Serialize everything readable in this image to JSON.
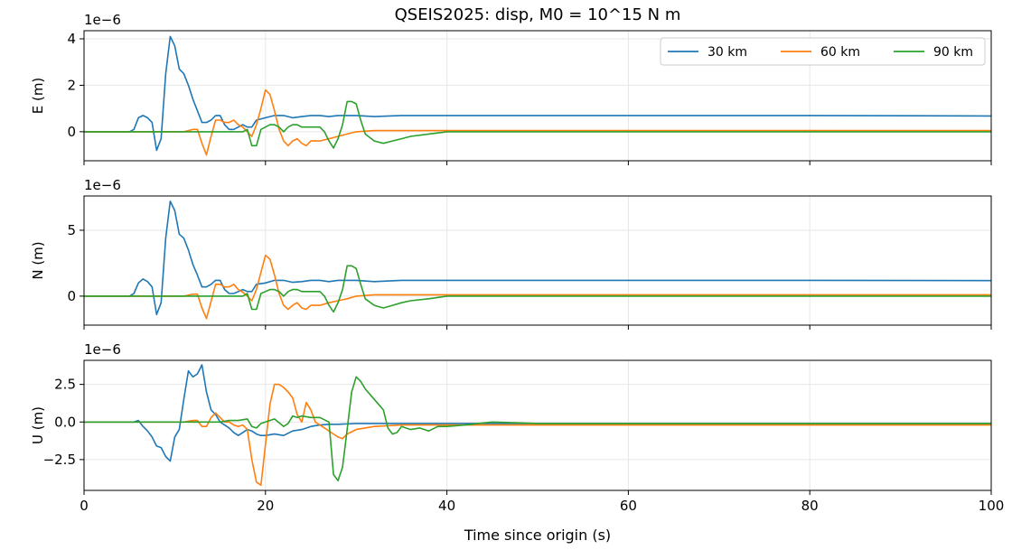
{
  "figure": {
    "title": "QSEIS2025: disp, M0 = 10^15 N m",
    "xlabel": "Time since origin (s)"
  },
  "colors": {
    "30 km": "#1f77b4",
    "60 km": "#ff7f0e",
    "90 km": "#2ca02c"
  },
  "legend": {
    "location": "top-right (first panel)",
    "entries": [
      "30 km",
      "60 km",
      "90 km"
    ]
  },
  "chart_data": [
    {
      "type": "line",
      "ylabel": "E (m)",
      "scale_label": "1e−6",
      "xlim": [
        0,
        100
      ],
      "ylim": [
        -1.25,
        4.35
      ],
      "xticks": [
        0,
        20,
        40,
        60,
        80,
        100
      ],
      "yticks": [
        0,
        2,
        4
      ],
      "ytick_labels": [
        "0",
        "2",
        "4"
      ],
      "grid": true,
      "series": [
        {
          "name": "30 km",
          "x": [
            0,
            5,
            5.5,
            6,
            6.5,
            7,
            7.5,
            8,
            8.5,
            9,
            9.5,
            10,
            10.5,
            11,
            11.5,
            12,
            12.5,
            13,
            13.5,
            14,
            14.5,
            15,
            15.5,
            16,
            16.5,
            17,
            17.5,
            18,
            18.5,
            19,
            20,
            21,
            22,
            23,
            24,
            25,
            26,
            27,
            28,
            29,
            30,
            32,
            35,
            40,
            50,
            60,
            80,
            100
          ],
          "y": [
            0,
            0,
            0.1,
            0.6,
            0.7,
            0.6,
            0.4,
            -0.8,
            -0.3,
            2.5,
            4.1,
            3.7,
            2.7,
            2.5,
            2.0,
            1.4,
            0.9,
            0.4,
            0.4,
            0.5,
            0.7,
            0.7,
            0.3,
            0.1,
            0.1,
            0.2,
            0.3,
            0.2,
            0.2,
            0.5,
            0.6,
            0.7,
            0.7,
            0.6,
            0.65,
            0.7,
            0.7,
            0.65,
            0.7,
            0.7,
            0.7,
            0.65,
            0.7,
            0.7,
            0.7,
            0.7,
            0.7,
            0.68
          ]
        },
        {
          "name": "60 km",
          "x": [
            0,
            10,
            11,
            12,
            12.5,
            13,
            13.5,
            14,
            14.5,
            15,
            15.5,
            16,
            16.5,
            17,
            17.5,
            18,
            18.5,
            19,
            19.5,
            20,
            20.5,
            21,
            21.5,
            22,
            22.5,
            23,
            23.5,
            24,
            24.5,
            25,
            26,
            27,
            28,
            29,
            30,
            32,
            35,
            40,
            50,
            60,
            80,
            100
          ],
          "y": [
            0,
            0,
            0,
            0.1,
            0.1,
            -0.5,
            -1.0,
            -0.2,
            0.5,
            0.5,
            0.4,
            0.4,
            0.5,
            0.3,
            0.2,
            0.0,
            -0.2,
            0.3,
            1.0,
            1.8,
            1.6,
            0.9,
            0.1,
            -0.4,
            -0.6,
            -0.4,
            -0.3,
            -0.5,
            -0.6,
            -0.4,
            -0.4,
            -0.3,
            -0.2,
            -0.1,
            0.0,
            0.05,
            0.05,
            0.05,
            0.05,
            0.05,
            0.05,
            0.05
          ]
        },
        {
          "name": "90 km",
          "x": [
            0,
            15,
            16,
            17,
            17.5,
            18,
            18.5,
            19,
            19.5,
            20,
            20.5,
            21,
            21.5,
            22,
            22.5,
            23,
            23.5,
            24,
            24.5,
            25,
            26,
            26.5,
            27,
            27.5,
            28,
            28.5,
            29,
            29.5,
            30,
            30.5,
            31,
            32,
            33,
            34,
            35,
            36,
            38,
            40,
            45,
            50,
            60,
            80,
            100
          ],
          "y": [
            0,
            0,
            0,
            0,
            0,
            0.1,
            -0.6,
            -0.6,
            0.1,
            0.2,
            0.3,
            0.3,
            0.2,
            0.0,
            0.2,
            0.3,
            0.3,
            0.2,
            0.2,
            0.2,
            0.2,
            0.0,
            -0.4,
            -0.7,
            -0.3,
            0.3,
            1.3,
            1.3,
            1.2,
            0.5,
            -0.1,
            -0.4,
            -0.5,
            -0.4,
            -0.3,
            -0.2,
            -0.1,
            0.0,
            0.0,
            0.0,
            0.0,
            0.0,
            0.0
          ]
        }
      ]
    },
    {
      "type": "line",
      "ylabel": "N (m)",
      "scale_label": "1e−6",
      "xlim": [
        0,
        100
      ],
      "ylim": [
        -2.2,
        7.6
      ],
      "xticks": [
        0,
        20,
        40,
        60,
        80,
        100
      ],
      "yticks": [
        0,
        5
      ],
      "ytick_labels": [
        "0",
        "5"
      ],
      "grid": true,
      "series": [
        {
          "name": "30 km",
          "x": [
            0,
            5,
            5.5,
            6,
            6.5,
            7,
            7.5,
            8,
            8.5,
            9,
            9.5,
            10,
            10.5,
            11,
            11.5,
            12,
            12.5,
            13,
            13.5,
            14,
            14.5,
            15,
            15.5,
            16,
            16.5,
            17,
            17.5,
            18,
            18.5,
            19,
            20,
            21,
            22,
            23,
            24,
            25,
            26,
            27,
            28,
            29,
            30,
            32,
            35,
            40,
            50,
            60,
            80,
            100
          ],
          "y": [
            0,
            0,
            0.2,
            1.0,
            1.3,
            1.1,
            0.7,
            -1.4,
            -0.5,
            4.4,
            7.2,
            6.5,
            4.7,
            4.4,
            3.5,
            2.4,
            1.6,
            0.7,
            0.7,
            0.9,
            1.2,
            1.2,
            0.5,
            0.2,
            0.2,
            0.35,
            0.5,
            0.35,
            0.35,
            0.9,
            1.0,
            1.2,
            1.2,
            1.05,
            1.1,
            1.2,
            1.2,
            1.1,
            1.2,
            1.2,
            1.2,
            1.1,
            1.2,
            1.2,
            1.2,
            1.2,
            1.2,
            1.18
          ]
        },
        {
          "name": "60 km",
          "x": [
            0,
            10,
            11,
            12,
            12.5,
            13,
            13.5,
            14,
            14.5,
            15,
            15.5,
            16,
            16.5,
            17,
            17.5,
            18,
            18.5,
            19,
            19.5,
            20,
            20.5,
            21,
            21.5,
            22,
            22.5,
            23,
            23.5,
            24,
            24.5,
            25,
            26,
            27,
            28,
            29,
            30,
            32,
            35,
            40,
            50,
            60,
            80,
            100
          ],
          "y": [
            0,
            0,
            0,
            0.15,
            0.15,
            -0.9,
            -1.7,
            -0.4,
            0.9,
            0.9,
            0.7,
            0.7,
            0.9,
            0.5,
            0.3,
            0.0,
            -0.35,
            0.5,
            1.8,
            3.1,
            2.8,
            1.6,
            0.2,
            -0.7,
            -1.0,
            -0.7,
            -0.5,
            -0.9,
            -1.0,
            -0.7,
            -0.7,
            -0.5,
            -0.35,
            -0.2,
            0.0,
            0.1,
            0.1,
            0.1,
            0.1,
            0.1,
            0.1,
            0.1
          ]
        },
        {
          "name": "90 km",
          "x": [
            0,
            15,
            16,
            17,
            17.5,
            18,
            18.5,
            19,
            19.5,
            20,
            20.5,
            21,
            21.5,
            22,
            22.5,
            23,
            23.5,
            24,
            24.5,
            25,
            26,
            26.5,
            27,
            27.5,
            28,
            28.5,
            29,
            29.5,
            30,
            30.5,
            31,
            32,
            33,
            34,
            35,
            36,
            38,
            40,
            45,
            50,
            60,
            80,
            100
          ],
          "y": [
            0,
            0,
            0,
            0,
            0,
            0.2,
            -1.0,
            -1.0,
            0.2,
            0.35,
            0.5,
            0.5,
            0.35,
            0.0,
            0.35,
            0.5,
            0.5,
            0.35,
            0.35,
            0.35,
            0.35,
            0.0,
            -0.7,
            -1.2,
            -0.5,
            0.5,
            2.3,
            2.3,
            2.1,
            0.9,
            -0.2,
            -0.7,
            -0.9,
            -0.7,
            -0.5,
            -0.35,
            -0.2,
            0.0,
            0.0,
            0.0,
            0.0,
            0.0,
            0.0
          ]
        }
      ]
    },
    {
      "type": "line",
      "ylabel": "U (m)",
      "scale_label": "1e−6",
      "xlim": [
        0,
        100
      ],
      "ylim": [
        -4.55,
        4.1
      ],
      "xticks": [
        0,
        20,
        40,
        60,
        80,
        100
      ],
      "yticks": [
        -2.5,
        0,
        2.5
      ],
      "ytick_labels": [
        "−2.5",
        "0.0",
        "2.5"
      ],
      "grid": true,
      "series": [
        {
          "name": "30 km",
          "x": [
            0,
            5,
            5.5,
            6,
            6.5,
            7,
            7.5,
            8,
            8.5,
            9,
            9.5,
            10,
            10.5,
            11,
            11.5,
            12,
            12.5,
            13,
            13.5,
            14,
            14.5,
            15,
            15.5,
            16,
            16.5,
            17,
            17.5,
            18,
            18.5,
            19,
            19.5,
            20,
            21,
            22,
            23,
            24,
            25,
            26,
            27,
            28,
            30,
            32,
            35,
            40,
            50,
            60,
            80,
            100
          ],
          "y": [
            0,
            0,
            0,
            0.1,
            -0.3,
            -0.6,
            -1.0,
            -1.6,
            -1.7,
            -2.3,
            -2.6,
            -1.0,
            -0.5,
            1.5,
            3.4,
            3.0,
            3.2,
            3.8,
            2.0,
            0.8,
            0.5,
            0.0,
            -0.2,
            -0.4,
            -0.7,
            -0.9,
            -0.7,
            -0.5,
            -0.6,
            -0.8,
            -0.9,
            -0.9,
            -0.8,
            -0.9,
            -0.6,
            -0.5,
            -0.3,
            -0.2,
            -0.15,
            -0.15,
            -0.1,
            -0.1,
            -0.1,
            -0.1,
            -0.1,
            -0.1,
            -0.1,
            -0.1
          ]
        },
        {
          "name": "60 km",
          "x": [
            0,
            10,
            11,
            12,
            12.5,
            13,
            13.5,
            14,
            14.5,
            15,
            15.5,
            16,
            16.5,
            17,
            17.5,
            18,
            18.5,
            19,
            19.5,
            20,
            20.5,
            21,
            21.5,
            22,
            22.5,
            23,
            23.5,
            24,
            24.5,
            25,
            25.5,
            26,
            27,
            27.5,
            28,
            28.5,
            29,
            30,
            32,
            35,
            40,
            50,
            60,
            80,
            100
          ],
          "y": [
            0,
            0,
            0,
            0.1,
            0.1,
            -0.3,
            -0.3,
            0.3,
            0.6,
            0.3,
            0.0,
            0.0,
            -0.2,
            -0.3,
            -0.2,
            -0.5,
            -2.5,
            -4.0,
            -4.2,
            -1.5,
            1.2,
            2.5,
            2.5,
            2.3,
            2.0,
            1.6,
            0.5,
            0.0,
            1.3,
            0.8,
            0.0,
            -0.2,
            -0.6,
            -0.8,
            -1.0,
            -1.1,
            -0.8,
            -0.5,
            -0.3,
            -0.2,
            -0.2,
            -0.2,
            -0.2,
            -0.2,
            -0.2
          ]
        },
        {
          "name": "90 km",
          "x": [
            0,
            15,
            16,
            17,
            18,
            18.5,
            19,
            19.5,
            20,
            21,
            22,
            22.5,
            23,
            23.5,
            24,
            25,
            26,
            27,
            27.5,
            28,
            28.5,
            29,
            29.5,
            30,
            30.5,
            31,
            32,
            33,
            33.5,
            34,
            34.5,
            35,
            36,
            37,
            38,
            39,
            40,
            42,
            45,
            50,
            60,
            80,
            100
          ],
          "y": [
            0,
            0,
            0.1,
            0.1,
            0.2,
            -0.3,
            -0.4,
            -0.1,
            0.0,
            0.2,
            -0.3,
            -0.1,
            0.4,
            0.3,
            0.4,
            0.3,
            0.3,
            0.0,
            -3.5,
            -3.9,
            -3.0,
            -0.5,
            2.0,
            3.0,
            2.7,
            2.2,
            1.5,
            0.8,
            -0.4,
            -0.8,
            -0.7,
            -0.3,
            -0.5,
            -0.4,
            -0.6,
            -0.3,
            -0.3,
            -0.2,
            0.0,
            -0.1,
            -0.1,
            -0.1,
            -0.1
          ]
        }
      ]
    }
  ]
}
